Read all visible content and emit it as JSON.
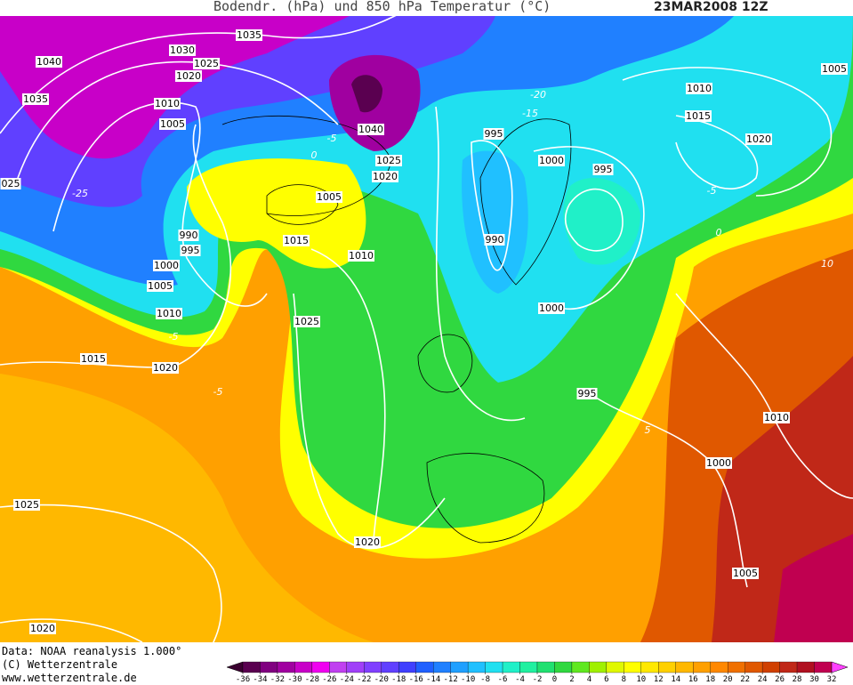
{
  "header": {
    "title": "Bodendr. (hPa) und 850 hPa Temperatur (°C)",
    "date": "23MAR2008 12Z"
  },
  "isobar_labels": [
    "1035",
    "1030",
    "1040",
    "1025",
    "1020",
    "1035",
    "1010",
    "1005",
    "1040",
    "1025",
    "1020",
    "995",
    "1000",
    "995",
    "1010",
    "1015",
    "1020",
    "1005",
    "1005",
    "1015",
    "1010",
    "990",
    "995",
    "1000",
    "1005",
    "1010",
    "990",
    "1000",
    "1025",
    "1015",
    "1020",
    "995",
    "1010",
    "1000",
    "1025",
    "1020",
    "1005",
    "1020",
    "025"
  ],
  "temperature_labels": [
    "-20",
    "-15",
    "-5",
    "0",
    "-5",
    "0",
    "-5",
    "-5",
    "5",
    "10",
    "-25"
  ],
  "footer": {
    "data": "Data: NOAA reanalysis 1.000°",
    "copyright": "(C) Wetterzentrale",
    "url": "www.wetterzentrale.de"
  },
  "colorbar": {
    "ticks": [
      -36,
      -34,
      -32,
      -30,
      -28,
      -26,
      -24,
      -22,
      -20,
      -18,
      -16,
      -14,
      -12,
      -10,
      -8,
      -6,
      -4,
      -2,
      0,
      2,
      4,
      6,
      8,
      10,
      12,
      14,
      16,
      18,
      20,
      22,
      24,
      26,
      28,
      30,
      32
    ],
    "colors": [
      "#3a0030",
      "#5a0050",
      "#800080",
      "#a000a0",
      "#c800c8",
      "#f000f0",
      "#c040f0",
      "#a040f8",
      "#8040ff",
      "#6040ff",
      "#4040ff",
      "#2060ff",
      "#2080ff",
      "#20a0ff",
      "#20c0ff",
      "#20e0f0",
      "#20f0c8",
      "#20f0a0",
      "#20e070",
      "#30d840",
      "#60e820",
      "#a0f000",
      "#e0f800",
      "#ffff00",
      "#ffe800",
      "#ffd000",
      "#ffb800",
      "#ffa000",
      "#ff8800",
      "#f07000",
      "#e05800",
      "#d04000",
      "#c02818",
      "#b01020",
      "#c00050",
      "#e000a0",
      "#ff40ff"
    ]
  }
}
